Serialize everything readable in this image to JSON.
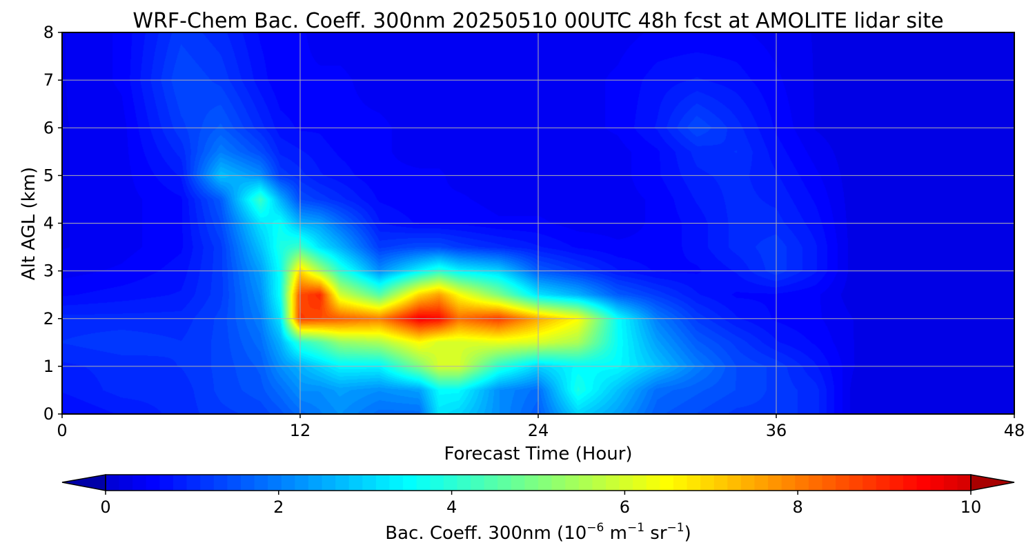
{
  "chart_data": {
    "type": "heatmap",
    "title": "WRF-Chem Bac. Coeff. 300nm  20250510 00UTC 48h fcst at AMOLITE lidar site",
    "xlabel": "Forecast Time (Hour)",
    "ylabel": "Alt AGL (km)",
    "xlim": [
      0,
      48
    ],
    "ylim": [
      0,
      8
    ],
    "xticks": [
      "0",
      "12",
      "24",
      "36",
      "48"
    ],
    "xtick_values": [
      0,
      12,
      24,
      36,
      48
    ],
    "yticks": [
      "0",
      "1",
      "2",
      "3",
      "4",
      "5",
      "6",
      "7",
      "8"
    ],
    "ytick_values": [
      0,
      1,
      2,
      3,
      4,
      5,
      6,
      7,
      8
    ],
    "grid": true,
    "colormap": "jet",
    "colorbar": {
      "label": "Bac. Coeff. 300nm  (10",
      "label_exp1": "−6",
      "label_mid": " m",
      "label_exp2": "−1",
      "label_mid2": " sr",
      "label_exp3": "−1",
      "label_end": ")",
      "range": [
        0,
        10
      ],
      "extend": "both",
      "ticks": [
        "0",
        "2",
        "4",
        "6",
        "8",
        "10"
      ],
      "tick_values": [
        0,
        2,
        4,
        6,
        8,
        10
      ]
    },
    "x": [
      0,
      3,
      6,
      8,
      10,
      11,
      12,
      13,
      14,
      16,
      18,
      19,
      20,
      22,
      24,
      26,
      28,
      30,
      32,
      34,
      36,
      38,
      40,
      44,
      48
    ],
    "y": [
      0,
      0.5,
      1,
      1.5,
      2,
      2.5,
      3,
      3.5,
      4,
      4.5,
      5,
      5.5,
      6,
      7,
      8
    ],
    "z": [
      [
        0.6,
        0.8,
        1.0,
        1.2,
        1.3,
        1.5,
        1.8,
        2.0,
        2.2,
        1.8,
        1.8,
        3.2,
        3.0,
        2.2,
        1.6,
        3.0,
        2.4,
        1.6,
        1.4,
        1.2,
        1.2,
        1.0,
        0.2,
        0.2,
        0.2
      ],
      [
        0.8,
        1.0,
        1.0,
        1.3,
        1.5,
        1.8,
        2.2,
        2.2,
        2.4,
        2.2,
        2.4,
        3.5,
        3.5,
        2.2,
        1.8,
        3.8,
        2.8,
        1.8,
        1.6,
        1.4,
        1.2,
        1.0,
        0.2,
        0.2,
        0.2
      ],
      [
        0.9,
        1.0,
        1.1,
        1.3,
        1.6,
        2.2,
        2.6,
        3.0,
        3.4,
        3.4,
        5.0,
        6.0,
        6.0,
        4.0,
        3.0,
        3.5,
        3.5,
        2.8,
        2.0,
        1.4,
        1.2,
        0.8,
        0.3,
        0.2,
        0.2
      ],
      [
        1.1,
        1.2,
        1.1,
        1.3,
        1.8,
        2.6,
        4.0,
        4.5,
        5.2,
        5.5,
        6.5,
        6.0,
        6.0,
        6.2,
        6.0,
        5.5,
        3.6,
        2.4,
        1.6,
        1.2,
        0.8,
        0.6,
        0.3,
        0.2,
        0.2
      ],
      [
        1.0,
        1.0,
        1.0,
        1.3,
        2.0,
        3.2,
        8.8,
        8.6,
        8.4,
        8.0,
        9.6,
        9.4,
        8.2,
        8.8,
        7.5,
        6.5,
        3.6,
        2.0,
        1.2,
        0.8,
        0.6,
        0.5,
        0.3,
        0.2,
        0.2
      ],
      [
        0.6,
        0.7,
        0.8,
        1.2,
        2.2,
        3.6,
        8.6,
        9.0,
        6.0,
        4.5,
        7.0,
        7.6,
        6.5,
        5.0,
        3.2,
        2.6,
        1.6,
        1.2,
        0.8,
        0.6,
        0.6,
        0.5,
        0.2,
        0.2,
        0.2
      ],
      [
        0.4,
        0.5,
        0.7,
        1.2,
        2.4,
        3.6,
        7.0,
        5.5,
        4.0,
        2.2,
        3.4,
        4.0,
        3.4,
        3.0,
        1.6,
        1.2,
        0.8,
        0.6,
        0.6,
        0.8,
        1.2,
        0.8,
        0.2,
        0.2,
        0.2
      ],
      [
        0.3,
        0.4,
        0.6,
        1.2,
        2.8,
        3.8,
        4.2,
        3.2,
        2.6,
        1.2,
        1.4,
        1.4,
        1.2,
        1.0,
        0.8,
        0.6,
        0.5,
        0.5,
        0.7,
        1.0,
        1.2,
        0.8,
        0.2,
        0.2,
        0.2
      ],
      [
        0.3,
        0.4,
        0.6,
        1.4,
        3.2,
        3.6,
        2.6,
        2.4,
        1.8,
        0.8,
        0.6,
        0.6,
        0.6,
        0.5,
        0.5,
        0.4,
        0.4,
        0.5,
        0.7,
        1.0,
        1.0,
        0.7,
        0.2,
        0.2,
        0.2
      ],
      [
        0.3,
        0.4,
        0.6,
        1.6,
        4.2,
        2.6,
        1.4,
        1.2,
        1.0,
        0.6,
        0.5,
        0.5,
        0.5,
        0.4,
        0.4,
        0.4,
        0.4,
        0.5,
        0.8,
        1.0,
        0.9,
        0.6,
        0.2,
        0.2,
        0.2
      ],
      [
        0.3,
        0.4,
        0.8,
        2.8,
        2.2,
        1.2,
        1.0,
        0.8,
        0.7,
        0.5,
        0.5,
        0.5,
        0.4,
        0.4,
        0.4,
        0.4,
        0.4,
        0.6,
        0.9,
        1.0,
        0.8,
        0.5,
        0.2,
        0.2,
        0.2
      ],
      [
        0.3,
        0.4,
        1.0,
        2.0,
        1.4,
        0.9,
        0.8,
        0.7,
        0.6,
        0.5,
        0.4,
        0.4,
        0.4,
        0.4,
        0.4,
        0.4,
        0.4,
        0.6,
        1.0,
        1.1,
        0.7,
        0.4,
        0.2,
        0.2,
        0.2
      ],
      [
        0.3,
        0.4,
        1.2,
        1.6,
        1.0,
        0.7,
        0.6,
        0.6,
        0.5,
        0.5,
        0.4,
        0.4,
        0.4,
        0.4,
        0.4,
        0.4,
        0.5,
        0.8,
        1.4,
        1.0,
        0.6,
        0.3,
        0.2,
        0.2,
        0.2
      ],
      [
        0.3,
        0.5,
        1.4,
        1.2,
        0.7,
        0.5,
        0.5,
        0.5,
        0.5,
        0.4,
        0.4,
        0.4,
        0.4,
        0.4,
        0.4,
        0.4,
        0.5,
        0.7,
        0.8,
        0.7,
        0.5,
        0.3,
        0.2,
        0.2,
        0.2
      ],
      [
        0.3,
        0.5,
        1.2,
        1.0,
        0.6,
        0.5,
        0.5,
        0.4,
        0.4,
        0.4,
        0.4,
        0.4,
        0.4,
        0.4,
        0.4,
        0.4,
        0.4,
        0.5,
        0.5,
        0.5,
        0.4,
        0.3,
        0.2,
        0.2,
        0.2
      ]
    ]
  }
}
